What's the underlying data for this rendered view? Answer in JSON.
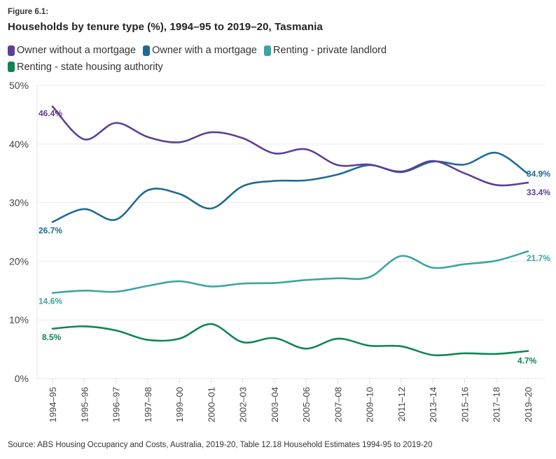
{
  "figure_label": "Figure 6.1:",
  "source": "Source: ABS Housing Occupancy and Costs, Australia, 2019-20, Table 12.18 Household Estimates 1994-95 to 2019-20",
  "chart_data": {
    "type": "line",
    "title": "Households by tenure type (%), 1994–95 to 2019–20, Tasmania",
    "xlabel": "",
    "ylabel": "",
    "ylim": [
      0,
      50
    ],
    "yticks": [
      0,
      10,
      20,
      30,
      40,
      50
    ],
    "ytick_labels": [
      "0%",
      "10%",
      "20%",
      "30%",
      "40%",
      "50%"
    ],
    "grid": true,
    "legend_position": "top-left",
    "categories": [
      "1994–95",
      "1995–96",
      "1996–97",
      "1997–98",
      "1999–00",
      "2000–01",
      "2002–03",
      "2003–04",
      "2005–06",
      "2007–08",
      "2009–10",
      "2011–12",
      "2013–14",
      "2015–16",
      "2017–18",
      "2019–20"
    ],
    "series": [
      {
        "name": "Owner without a mortgage",
        "color": "#5e3f96",
        "values": [
          46.4,
          40.8,
          43.6,
          41.2,
          40.3,
          42.0,
          41.0,
          38.4,
          39.1,
          36.4,
          36.5,
          35.3,
          37.1,
          35.0,
          33.0,
          33.4
        ],
        "start_label": "46.4%",
        "end_label": "33.4%"
      },
      {
        "name": "Owner with a mortgage",
        "color": "#1f6b94",
        "values": [
          26.7,
          28.9,
          27.1,
          32.1,
          31.5,
          29.0,
          32.8,
          33.7,
          33.8,
          34.8,
          36.4,
          35.2,
          37.0,
          36.5,
          38.5,
          34.9
        ],
        "start_label": "26.7%",
        "end_label": "34.9%"
      },
      {
        "name": "Renting - private landlord",
        "color": "#3aa6a3",
        "values": [
          14.6,
          15.0,
          14.8,
          15.8,
          16.6,
          15.7,
          16.2,
          16.3,
          16.8,
          17.1,
          17.3,
          20.9,
          18.9,
          19.5,
          20.1,
          21.7
        ],
        "start_label": "14.6%",
        "end_label": "21.7%"
      },
      {
        "name": "Renting - state housing authority",
        "color": "#0f8553",
        "values": [
          8.5,
          8.9,
          8.2,
          6.6,
          6.8,
          9.3,
          6.2,
          6.9,
          5.1,
          6.8,
          5.6,
          5.5,
          4.0,
          4.3,
          4.2,
          4.7
        ],
        "start_label": "8.5%",
        "end_label": "4.7%"
      }
    ]
  }
}
